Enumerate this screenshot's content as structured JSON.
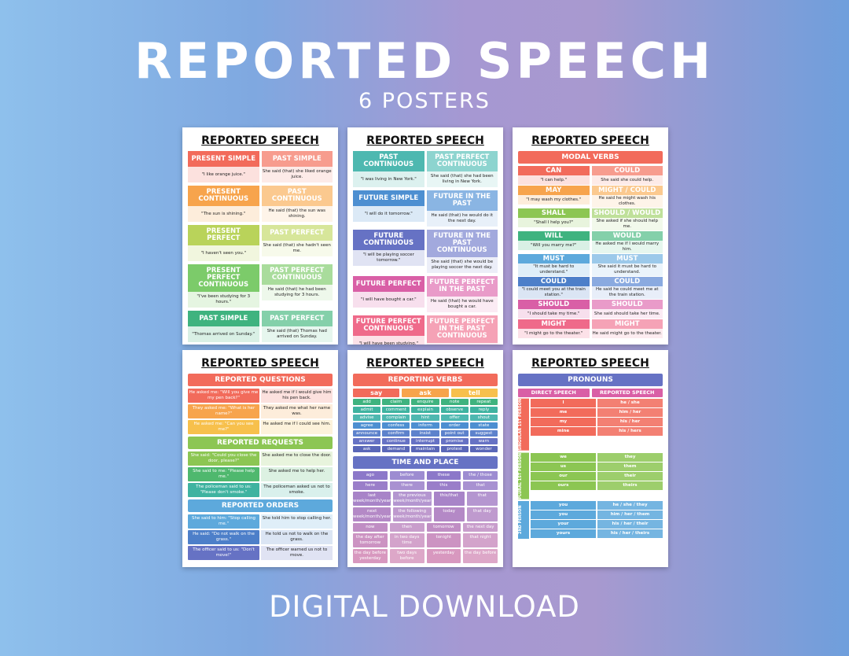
{
  "header": {
    "title": "REPORTED SPEECH",
    "subtitle": "6 POSTERS"
  },
  "footer": {
    "label": "DIGITAL DOWNLOAD"
  },
  "poster_title": "REPORTED SPEECH",
  "p1": {
    "pairs": [
      {
        "l": "PRESENT SIMPLE",
        "r": "PAST SIMPLE",
        "le": "\"I like orange juice.\"",
        "re": "She said (that) she liked orange juice.",
        "c1": "#f26b5b",
        "c2": "#f79c8e"
      },
      {
        "l": "PRESENT CONTINUOUS",
        "r": "PAST CONTINUOUS",
        "le": "\"The sun is shining.\"",
        "re": "He said (that) the sun was shining.",
        "c1": "#f7a44c",
        "c2": "#fbc98f"
      },
      {
        "l": "PRESENT PERFECT",
        "r": "PAST PERFECT",
        "le": "\"I haven't seen you.\"",
        "re": "She said (that) she hadn't seen me.",
        "c1": "#b9d35a",
        "c2": "#d7e69a"
      },
      {
        "l": "PRESENT PERFECT CONTINUOUS",
        "r": "PAST PERFECT CONTINUOUS",
        "le": "\"I've been studying for 3 hours.\"",
        "re": "He said (that) he had been studying for 3 hours.",
        "c1": "#7ccb6a",
        "c2": "#a9dc9c"
      },
      {
        "l": "PAST SIMPLE",
        "r": "PAST PERFECT",
        "le": "\"Thomas arrived on Sunday.\"",
        "re": "She said (that) Thomas had arrived on Sunday.",
        "c1": "#3fb37f",
        "c2": "#84d0aa"
      }
    ]
  },
  "p2": {
    "pairs": [
      {
        "l": "PAST CONTINUOUS",
        "r": "PAST PERFECT CONTINUOUS",
        "le": "\"I was living in New York.\"",
        "re": "She said (that) she had been living in New York.",
        "c1": "#4eb8b0",
        "c2": "#8dd4cf"
      },
      {
        "l": "FUTURE SIMPLE",
        "r": "FUTURE IN THE PAST",
        "le": "\"I will do it tomorrow.\"",
        "re": "He said (that) he would do it the next day.",
        "c1": "#4d8fd1",
        "c2": "#8ab5e3"
      },
      {
        "l": "FUTURE CONTINUOUS",
        "r": "FUTURE IN THE PAST CONTINUOUS",
        "le": "\"I will be playing soccer tomorrow.\"",
        "re": "She said (that) she would be playing soccer the next day.",
        "c1": "#6672c4",
        "c2": "#a2a9dd"
      },
      {
        "l": "FUTURE PERFECT",
        "r": "FUTURE PERFECT IN THE PAST",
        "le": "\"I will have bought a car.\"",
        "re": "He said (that) he would have bought a car.",
        "c1": "#d95fa6",
        "c2": "#e99bc9"
      },
      {
        "l": "FUTURE PERFECT CONTINUOUS",
        "r": "FUTURE PERFECT IN THE PAST CONTINUOUS",
        "le": "\"I will have been studying.\"",
        "re": "She said (that) she would have been studying.",
        "c1": "#ef6a8a",
        "c2": "#f5a2b6"
      }
    ]
  },
  "p3": {
    "band": "MODAL VERBS",
    "pairs": [
      {
        "l": "CAN",
        "r": "COULD",
        "le": "\"I can help.\"",
        "re": "She said she could help.",
        "c1": "#f26b5b",
        "c2": "#f79c8e"
      },
      {
        "l": "MAY",
        "r": "MIGHT / COULD",
        "le": "\"I may wash my clothes.\"",
        "re": "He said he might wash his clothes.",
        "c1": "#f7a44c",
        "c2": "#fbc98f"
      },
      {
        "l": "SHALL",
        "r": "SHOULD / WOULD",
        "le": "\"Shall I help you?\"",
        "re": "She asked if she should help me.",
        "c1": "#8cc653",
        "c2": "#bfe09a"
      },
      {
        "l": "WILL",
        "r": "WOULD",
        "le": "\"Will you marry me?\"",
        "re": "He asked me if I would marry him.",
        "c1": "#3fb37f",
        "c2": "#84d0aa"
      },
      {
        "l": "MUST",
        "r": "MUST",
        "le": "\"It must be hard to understand.\"",
        "re": "She said it must be hard to understand.",
        "c1": "#5da9dc",
        "c2": "#9cc9ea"
      },
      {
        "l": "COULD",
        "r": "COULD",
        "le": "\"I could meet you at the train station.\"",
        "re": "He said he could meet me at the train station.",
        "c1": "#4d7fc9",
        "c2": "#8aaae0"
      },
      {
        "l": "SHOULD",
        "r": "SHOULD",
        "le": "\"I should take my time.\"",
        "re": "She said should take her time.",
        "c1": "#d95fa6",
        "c2": "#e99bc9"
      },
      {
        "l": "MIGHT",
        "r": "MIGHT",
        "le": "\"I might go to the theater.\"",
        "re": "He said might go to the theater.",
        "c1": "#ef6a8a",
        "c2": "#f5a2b6"
      }
    ]
  },
  "p4": {
    "bands": [
      {
        "title": "REPORTED QUESTIONS",
        "color": "#f26b5b",
        "rows": [
          {
            "l": "He asked me: \"Will you give me my pen back?\"",
            "r": "He asked me if I would give him his pen back.",
            "c": "#f26b5b"
          },
          {
            "l": "They asked me: \"What is her name?\"",
            "r": "They asked me what her name was.",
            "c": "#f7a44c"
          },
          {
            "l": "He asked me: \"Can you see me?\"",
            "r": "He asked me if I could see him.",
            "c": "#f7c04c"
          }
        ]
      },
      {
        "title": "REPORTED REQUESTS",
        "color": "#8cc653",
        "rows": [
          {
            "l": "She said: \"Could you close the door, please?\"",
            "r": "She asked me to close the door.",
            "c": "#8cc653"
          },
          {
            "l": "She said to me: \"Please help me.\"",
            "r": "She asked me to help her.",
            "c": "#4fb86e"
          },
          {
            "l": "The policeman said to us: \"Please don't smoke.\"",
            "r": "The policeman asked us not to smoke.",
            "c": "#3fb3a0"
          }
        ]
      },
      {
        "title": "REPORTED ORDERS",
        "color": "#5da9dc",
        "rows": [
          {
            "l": "She said to him: \"Stop calling me.\"",
            "r": "She told him to stop calling her.",
            "c": "#5da9dc"
          },
          {
            "l": "He said: \"Do not walk on the grass.\"",
            "r": "He told us not to walk on the grass.",
            "c": "#4d7fc9"
          },
          {
            "l": "The officer said to us: \"Don't move!\"",
            "r": "The officer warned us not to move.",
            "c": "#6672c4"
          }
        ]
      }
    ]
  },
  "p5": {
    "band": "REPORTING VERBS",
    "heads": [
      "say",
      "ask",
      "tell"
    ],
    "verbs": [
      "add",
      "claim",
      "enquire",
      "note",
      "repeat",
      "admit",
      "comment",
      "explain",
      "observe",
      "reply",
      "advise",
      "complain",
      "hint",
      "offer",
      "shout",
      "agree",
      "confess",
      "inform",
      "order",
      "state",
      "announce",
      "confirm",
      "insist",
      "point out",
      "suggest",
      "answer",
      "continue",
      "interrupt",
      "promise",
      "warn",
      "ask",
      "demand",
      "maintain",
      "protest",
      "wonder"
    ],
    "band2": "TIME AND PLACE",
    "tp": [
      [
        "ago",
        "before",
        "these",
        "the / those"
      ],
      [
        "here",
        "there",
        "this",
        "that"
      ],
      [
        "last week/month/year",
        "the previous week/month/year",
        "this/that",
        "that"
      ],
      [
        "next week/month/year",
        "the following week/month/year",
        "today",
        "that day"
      ],
      [
        "now",
        "then",
        "tomorrow",
        "the next day"
      ],
      [
        "the day after tomorrow",
        "in two days time",
        "tonight",
        "that night"
      ],
      [
        "the day before yesterday",
        "two days before",
        "yesterday",
        "the day before"
      ]
    ]
  },
  "p6": {
    "band": "PRONOUNS",
    "heads": [
      "DIRECT SPEECH",
      "REPORTED SPEECH"
    ],
    "groups": [
      {
        "label": "SINGULAR 1ST PERSON",
        "color": "#f26b5b",
        "rows": [
          [
            "I",
            "he / she"
          ],
          [
            "me",
            "him / her"
          ],
          [
            "my",
            "his / her"
          ],
          [
            "mine",
            "his / hers"
          ]
        ]
      },
      {
        "label": "PLURAL 1ST PERSON",
        "color": "#8cc653",
        "rows": [
          [
            "we",
            "they"
          ],
          [
            "us",
            "them"
          ],
          [
            "our",
            "their"
          ],
          [
            "ours",
            "theirs"
          ]
        ]
      },
      {
        "label": "2ND PERSON",
        "color": "#5da9dc",
        "rows": [
          [
            "you",
            "he / she / they"
          ],
          [
            "you",
            "him / her / them"
          ],
          [
            "your",
            "his / her / their"
          ],
          [
            "yours",
            "his / her / theirs"
          ]
        ]
      }
    ]
  }
}
